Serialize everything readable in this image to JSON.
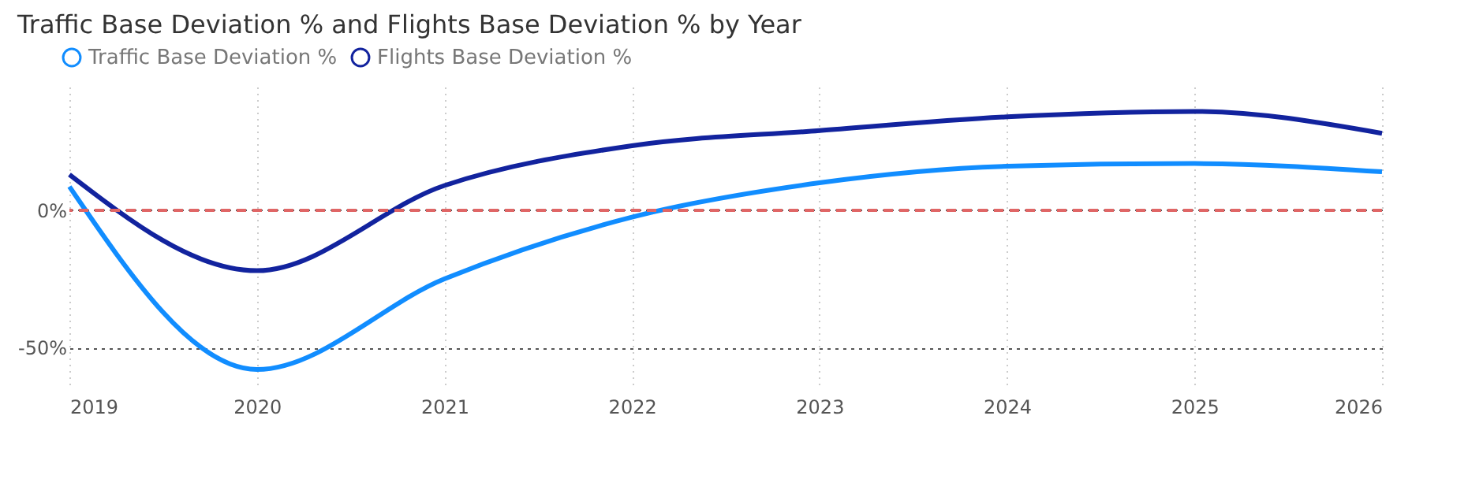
{
  "chart_data": {
    "type": "line",
    "title": "Traffic Base Deviation % and Flights Base Deviation % by Year",
    "x": [
      2019,
      2020,
      2021,
      2022,
      2023,
      2024,
      2025,
      2026
    ],
    "series": [
      {
        "name": "Traffic Base Deviation %",
        "color": "#118dff",
        "values": [
          8.6,
          -58,
          -25,
          -2.5,
          10,
          16,
          17,
          14
        ]
      },
      {
        "name": "Flights Base Deviation %",
        "color": "#12239e",
        "values": [
          13,
          -22,
          9,
          23.5,
          29,
          34,
          36,
          28
        ]
      }
    ],
    "xlim": [
      2019,
      2026
    ],
    "xticks": [
      2019,
      2020,
      2021,
      2022,
      2023,
      2024,
      2025,
      2026
    ],
    "ylim": [
      -64,
      45
    ],
    "yticks": [
      {
        "value": -50,
        "label": "-50%"
      },
      {
        "value": 0,
        "label": "0%"
      }
    ],
    "ref_lines": [
      {
        "axis": "y",
        "value": 0,
        "color": "#e06666",
        "line_style": "dashed"
      }
    ],
    "grid": true,
    "legend": "top left",
    "marker": "none",
    "line_style": "solid"
  }
}
